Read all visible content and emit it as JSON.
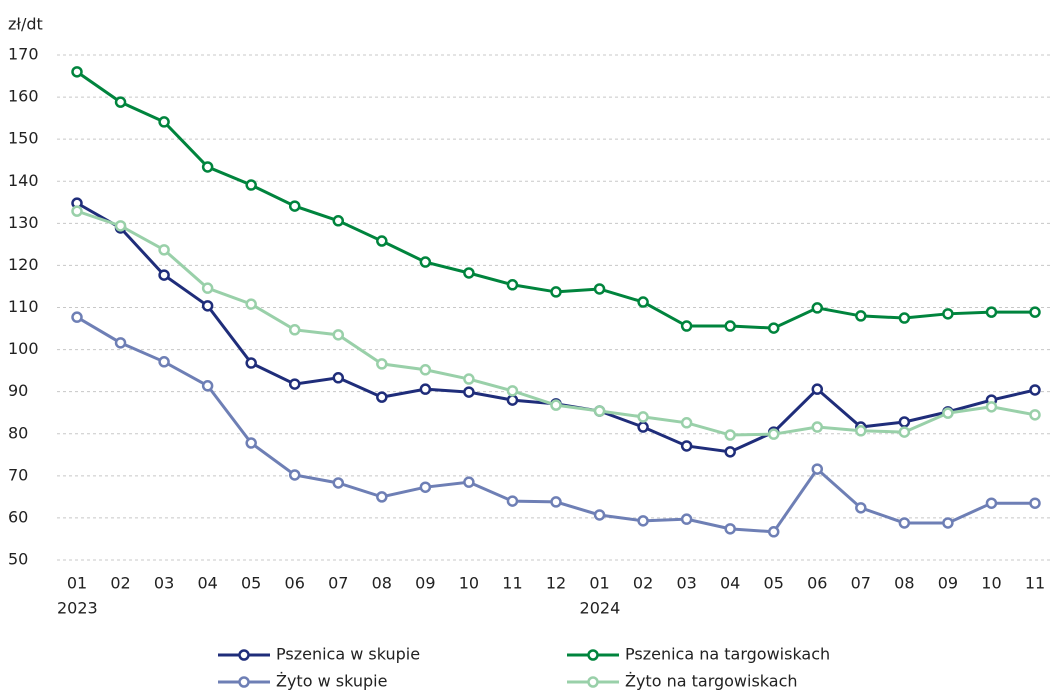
{
  "chart_data": {
    "type": "line",
    "y_label": "zł/dt",
    "categories": [
      "01",
      "02",
      "03",
      "04",
      "05",
      "06",
      "07",
      "08",
      "09",
      "10",
      "11",
      "12",
      "01",
      "02",
      "03",
      "04",
      "05",
      "06",
      "07",
      "08",
      "09",
      "10",
      "11"
    ],
    "x_groups": [
      {
        "label": "2023",
        "start": 0
      },
      {
        "label": "2024",
        "start": 12
      }
    ],
    "ylim": [
      50,
      170
    ],
    "yticks": [
      50,
      60,
      70,
      80,
      90,
      100,
      110,
      120,
      130,
      140,
      150,
      160,
      170
    ],
    "grid": true,
    "series": [
      {
        "name": "Pszenica w skupie",
        "color": "#1f2d7a",
        "values": [
          134.8,
          128.9,
          117.7,
          110.4,
          96.8,
          91.8,
          93.3,
          88.7,
          90.6,
          89.9,
          88.0,
          87.1,
          85.4,
          81.6,
          77.1,
          75.7,
          80.4,
          90.6,
          81.6,
          82.8,
          85.2,
          88.0,
          90.4
        ]
      },
      {
        "name": "Pszenica na targowiskach",
        "color": "#00843d",
        "values": [
          166.0,
          158.8,
          154.1,
          143.4,
          139.1,
          134.1,
          130.6,
          125.8,
          120.8,
          118.2,
          115.4,
          113.7,
          114.4,
          111.3,
          105.6,
          105.6,
          105.1,
          109.9,
          108.0,
          107.5,
          108.5,
          108.9,
          108.9
        ]
      },
      {
        "name": "Żyto w skupie",
        "color": "#6e7fb5",
        "values": [
          107.7,
          101.6,
          97.1,
          91.4,
          77.8,
          70.2,
          68.3,
          65.0,
          67.3,
          68.5,
          64.0,
          63.8,
          60.7,
          59.3,
          59.7,
          57.4,
          56.7,
          71.6,
          62.4,
          58.8,
          58.8,
          63.5,
          63.5
        ]
      },
      {
        "name": "Żyto na targowiskach",
        "color": "#99d0a9",
        "values": [
          132.9,
          129.4,
          123.7,
          114.6,
          110.8,
          104.7,
          103.5,
          96.6,
          95.2,
          93.0,
          90.2,
          86.8,
          85.4,
          84.0,
          82.6,
          79.7,
          79.9,
          81.6,
          80.7,
          80.4,
          84.9,
          86.4,
          84.5
        ]
      }
    ]
  }
}
